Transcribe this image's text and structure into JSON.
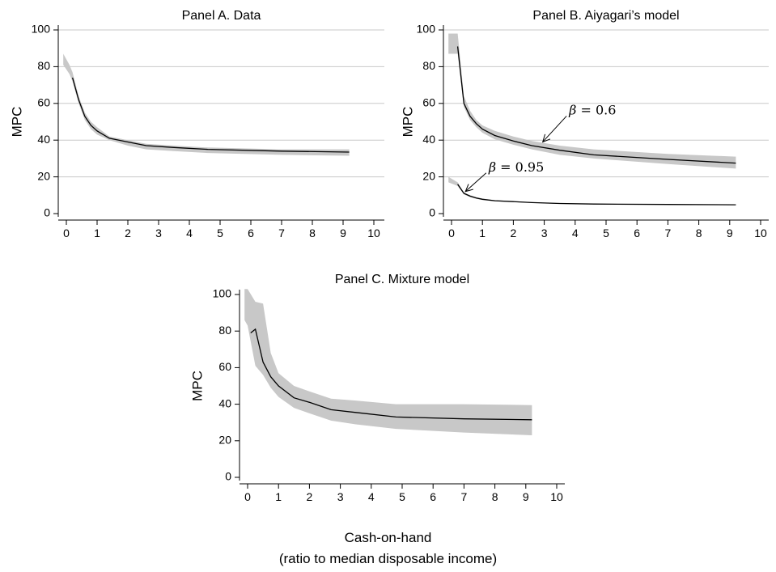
{
  "figure": {
    "xlabel": "Cash-on-hand",
    "xlabel_sub": "(ratio to median disposable income)",
    "colors": {
      "band": "#c8c8c8",
      "line": "#000000",
      "grid": "#c8c8c8"
    }
  },
  "chart_data": [
    {
      "id": "panel-a",
      "type": "line",
      "title": "Panel A. Data",
      "xlabel": "",
      "ylabel": "MPC",
      "xlim": [
        0,
        10
      ],
      "ylim": [
        0,
        100
      ],
      "xticks": [
        0,
        1,
        2,
        3,
        4,
        5,
        6,
        7,
        8,
        9,
        10
      ],
      "yticks": [
        0,
        20,
        40,
        60,
        80,
        100
      ],
      "grid": true,
      "legend": "none",
      "series": [
        {
          "x": [
            0.2,
            0.4,
            0.6,
            0.8,
            1.0,
            1.4,
            2.0,
            2.6,
            3.5,
            4.6,
            7.0,
            9.2
          ],
          "y": [
            74,
            62,
            53,
            48,
            45,
            41,
            39,
            37,
            36,
            35,
            34,
            33.5
          ],
          "band_x": [
            -0.1,
            0.1,
            0.2,
            0.4,
            0.6,
            0.8,
            1.0,
            1.4,
            2.0,
            2.6,
            3.5,
            4.6,
            7.0,
            9.2
          ],
          "band_lower": [
            81,
            76,
            72,
            60,
            51,
            46,
            43,
            40,
            37,
            35,
            34,
            33,
            32,
            31.5
          ],
          "band_upper": [
            87,
            81,
            77,
            64,
            55,
            50,
            47,
            42,
            40,
            38,
            37,
            36,
            35,
            35
          ]
        }
      ],
      "annotations": []
    },
    {
      "id": "panel-b",
      "type": "line",
      "title": "Panel B. Aiyagari’s model",
      "xlabel": "",
      "ylabel": "MPC",
      "xlim": [
        0,
        10
      ],
      "ylim": [
        0,
        100
      ],
      "xticks": [
        0,
        1,
        2,
        3,
        4,
        5,
        6,
        7,
        8,
        9,
        10
      ],
      "yticks": [
        0,
        20,
        40,
        60,
        80,
        100
      ],
      "grid": true,
      "legend": "none",
      "series": [
        {
          "x": [
            0.2,
            0.4,
            0.6,
            0.8,
            1.0,
            1.4,
            2.0,
            2.6,
            3.5,
            4.6,
            7.0,
            9.2
          ],
          "y": [
            91,
            60,
            53,
            49,
            46,
            42.5,
            39.5,
            37,
            34.5,
            32,
            29.5,
            27.5
          ],
          "band_x": [
            -0.1,
            0.2,
            0.4,
            0.6,
            0.8,
            1.0,
            1.4,
            2.0,
            2.6,
            3.5,
            4.6,
            7.0,
            9.2
          ],
          "band_lower": [
            87,
            87,
            58,
            51,
            47,
            44,
            40.5,
            37.5,
            35,
            32,
            30,
            27,
            24.5
          ],
          "band_upper": [
            98,
            98,
            64,
            56,
            51,
            48,
            45,
            42,
            39.5,
            37,
            35,
            32.5,
            31
          ]
        },
        {
          "x": [
            0.2,
            0.4,
            0.6,
            0.8,
            1.0,
            1.4,
            2.0,
            2.6,
            3.5,
            4.6,
            7.0,
            9.2
          ],
          "y": [
            16,
            11,
            9.5,
            8.5,
            7.8,
            7,
            6.5,
            6,
            5.5,
            5.2,
            5,
            4.8
          ],
          "band_x": [
            -0.1,
            0.2,
            0.4,
            0.6,
            0.8,
            1.0,
            1.4,
            2.0,
            2.6,
            3.5,
            4.6,
            7.0,
            9.2
          ],
          "band_lower": [
            17,
            15,
            10.5,
            9,
            8,
            7.4,
            6.7,
            6.2,
            5.8,
            5.3,
            5.1,
            4.9,
            4.7
          ],
          "band_upper": [
            20,
            17,
            11.5,
            10,
            9,
            8.2,
            7.3,
            6.8,
            6.2,
            5.7,
            5.4,
            5.1,
            4.9
          ]
        }
      ],
      "annotations": [
        {
          "symbol": "β",
          "equals": "= 0.6",
          "text_x": 3.8,
          "text_y": 54,
          "arrow_to_x": 2.95,
          "arrow_to_y": 39
        },
        {
          "symbol": "β",
          "equals": "= 0.95",
          "text_x": 1.2,
          "text_y": 23,
          "arrow_to_x": 0.45,
          "arrow_to_y": 12
        }
      ]
    },
    {
      "id": "panel-c",
      "type": "line",
      "title": "Panel C. Mixture model",
      "xlabel": "",
      "ylabel": "MPC",
      "xlim": [
        0,
        10
      ],
      "ylim": [
        0,
        100
      ],
      "xticks": [
        0,
        1,
        2,
        3,
        4,
        5,
        6,
        7,
        8,
        9,
        10
      ],
      "yticks": [
        0,
        20,
        40,
        60,
        80,
        100
      ],
      "grid": false,
      "legend": "none",
      "series": [
        {
          "x": [
            0.1,
            0.25,
            0.5,
            0.75,
            1.0,
            1.5,
            2.0,
            2.7,
            3.5,
            4.8,
            7.0,
            9.2
          ],
          "y": [
            79,
            81,
            63,
            55,
            50,
            43.5,
            41,
            37,
            35.5,
            33,
            32,
            31.5
          ],
          "band_x": [
            -0.1,
            0.0,
            0.25,
            0.5,
            0.75,
            1.0,
            1.5,
            2.0,
            2.7,
            3.5,
            4.8,
            7.0,
            9.2
          ],
          "band_lower": [
            86,
            83,
            61,
            56,
            49,
            44,
            38,
            35,
            31,
            29,
            26.5,
            24.5,
            23
          ],
          "band_upper": [
            103,
            103,
            96,
            95,
            68,
            57,
            50,
            47,
            43,
            42,
            40,
            40,
            39.5
          ]
        }
      ],
      "annotations": []
    }
  ]
}
